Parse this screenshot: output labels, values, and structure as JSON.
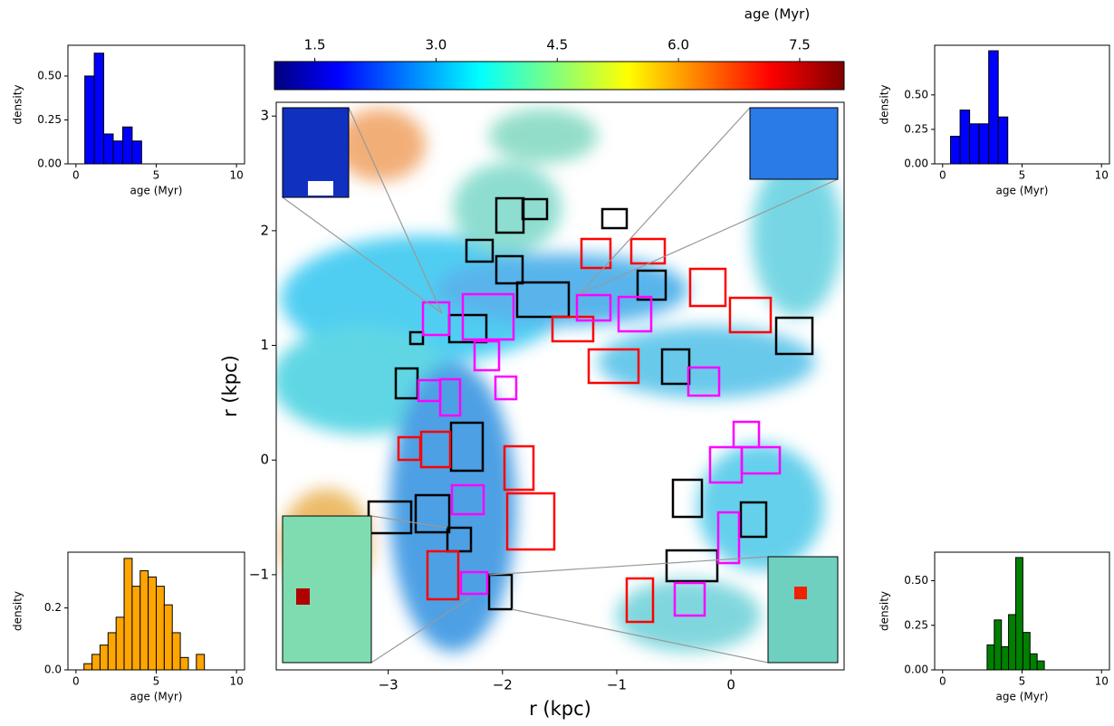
{
  "chart_data": [
    {
      "type": "histogram",
      "xlabel": "age (Myr)",
      "ylabel": "density",
      "color": "#0000ff",
      "bins": [
        0.55,
        1.14,
        1.73,
        2.32,
        2.91,
        3.5,
        4.09
      ],
      "values": [
        0.5,
        0.63,
        0.17,
        0.13,
        0.21,
        0.13
      ],
      "xlim": [
        -0.5,
        10.5
      ],
      "xticks": [
        0,
        5,
        10
      ],
      "ylim": [
        0,
        0.675
      ],
      "yticks": [
        {
          "value": 0,
          "label": "0.00"
        },
        {
          "value": 0.25,
          "label": "0.25"
        },
        {
          "value": 0.5,
          "label": "0.50"
        }
      ]
    },
    {
      "type": "histogram",
      "xlabel": "age (Myr)",
      "ylabel": "density",
      "color": "#0000ff",
      "bins": [
        0.5,
        1.1,
        1.7,
        2.3,
        2.9,
        3.5,
        4.1
      ],
      "values": [
        0.2,
        0.39,
        0.29,
        0.29,
        0.82,
        0.34
      ],
      "xlim": [
        -0.5,
        10.5
      ],
      "xticks": [
        0,
        5,
        10
      ],
      "ylim": [
        0,
        0.86
      ],
      "yticks": [
        {
          "value": 0,
          "label": "0.00"
        },
        {
          "value": 0.25,
          "label": "0.25"
        },
        {
          "value": 0.5,
          "label": "0.50"
        }
      ]
    },
    {
      "type": "histogram",
      "xlabel": "age (Myr)",
      "ylabel": "density",
      "color": "#ffa500",
      "bins": [
        0.5,
        1.0,
        1.5,
        2.0,
        2.5,
        3.0,
        3.5,
        4.0,
        4.5,
        5.0,
        5.5,
        6.0,
        6.5,
        7.0,
        7.5,
        8.0
      ],
      "values": [
        0.02,
        0.05,
        0.08,
        0.12,
        0.17,
        0.36,
        0.27,
        0.32,
        0.3,
        0.27,
        0.21,
        0.12,
        0.04,
        0,
        0.05
      ],
      "xlim": [
        -0.5,
        10.5
      ],
      "xticks": [
        0,
        5,
        10
      ],
      "ylim": [
        0,
        0.38
      ],
      "yticks": [
        {
          "value": 0,
          "label": "0.0"
        },
        0.2
      ]
    },
    {
      "type": "histogram",
      "xlabel": "age (Myr)",
      "ylabel": "density",
      "color": "#008000",
      "bins": [
        2.8,
        3.25,
        3.7,
        4.15,
        4.6,
        5.05,
        5.5,
        5.95,
        6.4,
        6.85
      ],
      "values": [
        0.14,
        0.28,
        0.13,
        0.31,
        0.63,
        0.21,
        0.09,
        0.05,
        0
      ],
      "xlim": [
        -0.5,
        10.5
      ],
      "xticks": [
        0,
        5,
        10
      ],
      "ylim": [
        0,
        0.66
      ],
      "yticks": [
        {
          "value": 0,
          "label": "0.00"
        },
        {
          "value": 0.25,
          "label": "0.25"
        },
        {
          "value": 0.5,
          "label": "0.50"
        }
      ]
    },
    {
      "type": "map",
      "xlabel": "r (kpc)",
      "ylabel": "r (kpc)",
      "colorbar_label": "age (Myr)",
      "colormap": "jet",
      "xlim": [
        -3.98,
        0.99
      ],
      "xticks": [
        {
          "value": -3,
          "label": "−3"
        },
        {
          "value": -2,
          "label": "−2"
        },
        {
          "value": -1,
          "label": "−1"
        },
        0
      ],
      "ylim": [
        -1.83,
        3.12
      ],
      "yticks": [
        {
          "value": -1,
          "label": "−1"
        },
        0,
        1,
        2,
        3
      ],
      "clim": [
        1.0,
        8.05
      ],
      "cticks": [
        1.5,
        {
          "value": 3.0,
          "label": "3.0"
        },
        {
          "value": 4.5,
          "label": "4.5"
        },
        {
          "value": 6.0,
          "label": "6.0"
        },
        {
          "value": 7.5,
          "label": "7.5"
        }
      ]
    }
  ]
}
